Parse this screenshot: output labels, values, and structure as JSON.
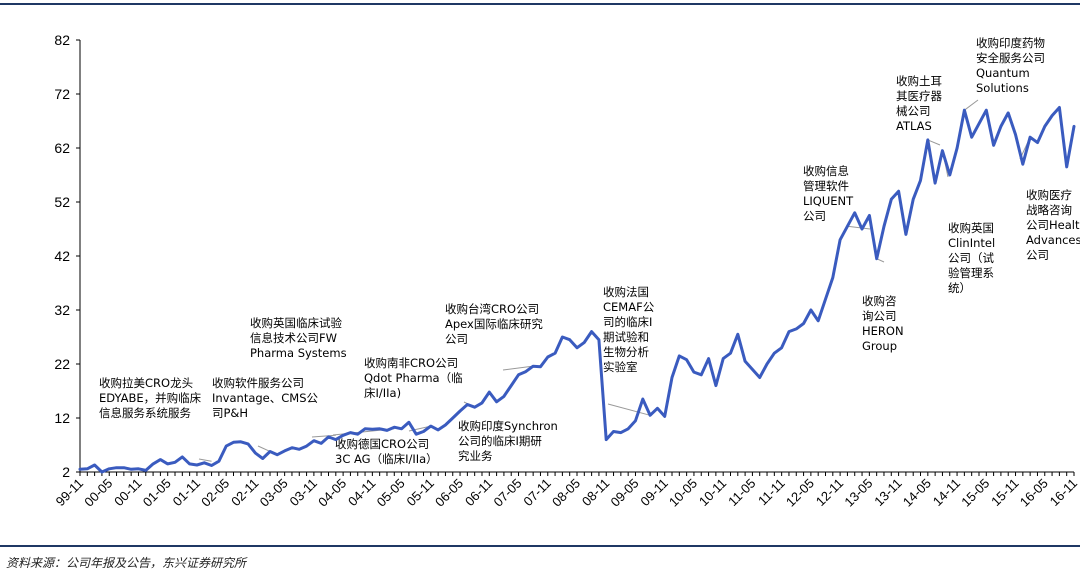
{
  "source": "资料来源：公司年报及公告，东兴证券研究所",
  "colors": {
    "line": "#3a5bbf",
    "rule": "#1f3864",
    "axis": "#000000",
    "leader": "#999999"
  },
  "chart_data": {
    "type": "line",
    "title": "",
    "xlabel": "",
    "ylabel": "",
    "ylim": [
      2,
      82
    ],
    "yticks": [
      2,
      12,
      22,
      32,
      42,
      52,
      62,
      72,
      82
    ],
    "grid": false,
    "legend": "none",
    "xtick_labels": [
      "99-11",
      "00-05",
      "00-11",
      "01-05",
      "01-11",
      "02-05",
      "02-11",
      "03-05",
      "03-11",
      "04-05",
      "04-11",
      "05-05",
      "05-11",
      "06-05",
      "06-11",
      "07-05",
      "07-11",
      "08-05",
      "08-11",
      "09-05",
      "09-11",
      "10-05",
      "10-11",
      "11-05",
      "11-11",
      "12-05",
      "12-11",
      "13-05",
      "13-11",
      "14-05",
      "14-11",
      "15-05",
      "15-11",
      "16-05",
      "16-11"
    ],
    "series": [
      {
        "name": "",
        "points": [
          [
            0,
            2.5
          ],
          [
            1,
            2.6
          ],
          [
            2,
            3.3
          ],
          [
            3,
            2
          ],
          [
            4,
            2.6
          ],
          [
            5,
            2.8
          ],
          [
            6,
            2.8
          ],
          [
            7,
            2.5
          ],
          [
            8,
            2.6
          ],
          [
            9,
            2.3
          ],
          [
            10,
            3.5
          ],
          [
            11,
            4.3
          ],
          [
            12,
            3.5
          ],
          [
            13,
            3.8
          ],
          [
            14,
            4.8
          ],
          [
            15,
            3.5
          ],
          [
            16,
            3.3
          ],
          [
            17,
            3.7
          ],
          [
            18,
            3.2
          ],
          [
            19,
            4.0
          ],
          [
            20,
            6.8
          ],
          [
            21,
            7.5
          ],
          [
            22,
            7.6
          ],
          [
            23,
            7.2
          ],
          [
            24,
            5.5
          ],
          [
            25,
            4.5
          ],
          [
            26,
            5.8
          ],
          [
            27,
            5.2
          ],
          [
            28,
            5.9
          ],
          [
            29,
            6.5
          ],
          [
            30,
            6.2
          ],
          [
            31,
            6.8
          ],
          [
            32,
            7.8
          ],
          [
            33,
            7.3
          ],
          [
            34,
            8.5
          ],
          [
            35,
            8.0
          ],
          [
            36,
            8.8
          ],
          [
            37,
            9.3
          ],
          [
            38,
            9.0
          ],
          [
            39,
            10.0
          ],
          [
            40,
            9.9
          ],
          [
            41,
            10.0
          ],
          [
            42,
            9.7
          ],
          [
            43,
            10.3
          ],
          [
            44,
            10.0
          ],
          [
            45,
            11.2
          ],
          [
            46,
            9.0
          ],
          [
            47,
            9.5
          ],
          [
            48,
            10.5
          ],
          [
            49,
            9.8
          ],
          [
            50,
            10.7
          ],
          [
            51,
            12.0
          ],
          [
            52,
            13.3
          ],
          [
            53,
            14.5
          ],
          [
            54,
            14.0
          ],
          [
            55,
            14.8
          ],
          [
            56,
            16.8
          ],
          [
            57,
            15.0
          ],
          [
            58,
            16.0
          ],
          [
            59,
            18.0
          ],
          [
            60,
            20.0
          ],
          [
            61,
            20.6
          ],
          [
            62,
            21.6
          ],
          [
            63,
            21.5
          ],
          [
            64,
            23.3
          ],
          [
            65,
            24.0
          ],
          [
            66,
            27.0
          ],
          [
            67,
            26.5
          ],
          [
            68,
            25.0
          ],
          [
            69,
            26.0
          ],
          [
            70,
            28.0
          ],
          [
            71,
            26.5
          ],
          [
            72,
            8.0
          ],
          [
            73,
            9.5
          ],
          [
            74,
            9.3
          ],
          [
            75,
            10.0
          ],
          [
            76,
            11.5
          ],
          [
            77,
            15.5
          ],
          [
            78,
            12.5
          ],
          [
            79,
            13.8
          ],
          [
            80,
            12.3
          ],
          [
            81,
            19.5
          ],
          [
            82,
            23.5
          ],
          [
            83,
            22.8
          ],
          [
            84,
            20.5
          ],
          [
            85,
            20.0
          ],
          [
            86,
            23.0
          ],
          [
            87,
            18.0
          ],
          [
            88,
            23.0
          ],
          [
            89,
            24.0
          ],
          [
            90,
            27.5
          ],
          [
            91,
            22.5
          ],
          [
            92,
            21.0
          ],
          [
            93,
            19.5
          ],
          [
            94,
            22.0
          ],
          [
            95,
            24.0
          ],
          [
            96,
            25.0
          ],
          [
            97,
            28.0
          ],
          [
            98,
            28.5
          ],
          [
            99,
            29.5
          ],
          [
            100,
            32.0
          ],
          [
            101,
            30.0
          ],
          [
            102,
            34.0
          ],
          [
            103,
            38.0
          ],
          [
            104,
            45.0
          ],
          [
            105,
            47.5
          ],
          [
            106,
            50.0
          ],
          [
            107,
            47.0
          ],
          [
            108,
            49.5
          ],
          [
            109,
            41.5
          ],
          [
            110,
            47.5
          ],
          [
            111,
            52.5
          ],
          [
            112,
            54.0
          ],
          [
            113,
            46.0
          ],
          [
            114,
            52.5
          ],
          [
            115,
            56.0
          ],
          [
            116,
            63.5
          ],
          [
            117,
            55.5
          ],
          [
            118,
            61.5
          ],
          [
            119,
            57.0
          ],
          [
            120,
            62.0
          ],
          [
            121,
            69.0
          ],
          [
            122,
            64.0
          ],
          [
            123,
            66.5
          ],
          [
            124,
            69.0
          ],
          [
            125,
            62.5
          ],
          [
            126,
            66.0
          ],
          [
            127,
            68.5
          ],
          [
            128,
            64.5
          ],
          [
            129,
            59.0
          ],
          [
            130,
            64.0
          ],
          [
            131,
            63.0
          ],
          [
            132,
            66.0
          ],
          [
            133,
            68.0
          ],
          [
            134,
            69.5
          ],
          [
            135,
            58.5
          ],
          [
            136,
            66.0
          ]
        ]
      }
    ],
    "annotations": [
      {
        "lines": [
          "收购拉美CRO龙头",
          "EDYABE，并购临床",
          "信息服务系统服务"
        ],
        "x": 18,
        "y": 4.0
      },
      {
        "lines": [
          "收购软件服务公司",
          "Invantage、CMS公",
          "司P&H"
        ],
        "x": 26,
        "y": 5.8
      },
      {
        "lines": [
          "收购英国临床试验",
          "信息技术公司FW",
          "Pharma Systems"
        ],
        "x": 35,
        "y": 8.8
      },
      {
        "lines": [
          "收购德国CRO公司",
          "3C AG（临床I/IIa）"
        ],
        "x": 43,
        "y": 10.0
      },
      {
        "lines": [
          "收购南非CRO公司",
          "Qdot Pharma（临",
          "床I/IIa)"
        ],
        "x": 48,
        "y": 10.5
      },
      {
        "lines": [
          "收购印度Synchron",
          "公司的临床I期研",
          "究业务"
        ],
        "x": 54,
        "y": 14.0
      },
      {
        "lines": [
          "收购台湾CRO公司",
          "Apex国际临床研究",
          "公司"
        ],
        "x": 62,
        "y": 21.6
      },
      {
        "lines": [
          "收购法国",
          "CEMAF公",
          "司的临床I",
          "期试验和",
          "生物分析",
          "实验室"
        ],
        "x": 78,
        "y": 12.5
      },
      {
        "lines": [
          "收购信息",
          "管理软件",
          "LIQUENT",
          "公司"
        ],
        "x": 105,
        "y": 47.5
      },
      {
        "lines": [
          "收购咨",
          "询公司",
          "HERON",
          "Group"
        ],
        "x": 109,
        "y": 41.5
      },
      {
        "lines": [
          "收购土耳",
          "其医疗器",
          "械公司",
          "ATLAS"
        ],
        "x": 116,
        "y": 63.5
      },
      {
        "lines": [
          "收购英国",
          "ClinIntel",
          "公司（试",
          "验管理系",
          "统）"
        ],
        "x": 118,
        "y": 61.5
      },
      {
        "lines": [
          "收购印度药物",
          "安全服务公司",
          "Quantum",
          "Solutions"
        ],
        "x": 121,
        "y": 69.0
      },
      {
        "lines": [
          "收购医疗",
          "战略咨询",
          "公司Health",
          "Advances",
          "公司"
        ],
        "x": 130,
        "y": 64.0
      }
    ]
  }
}
